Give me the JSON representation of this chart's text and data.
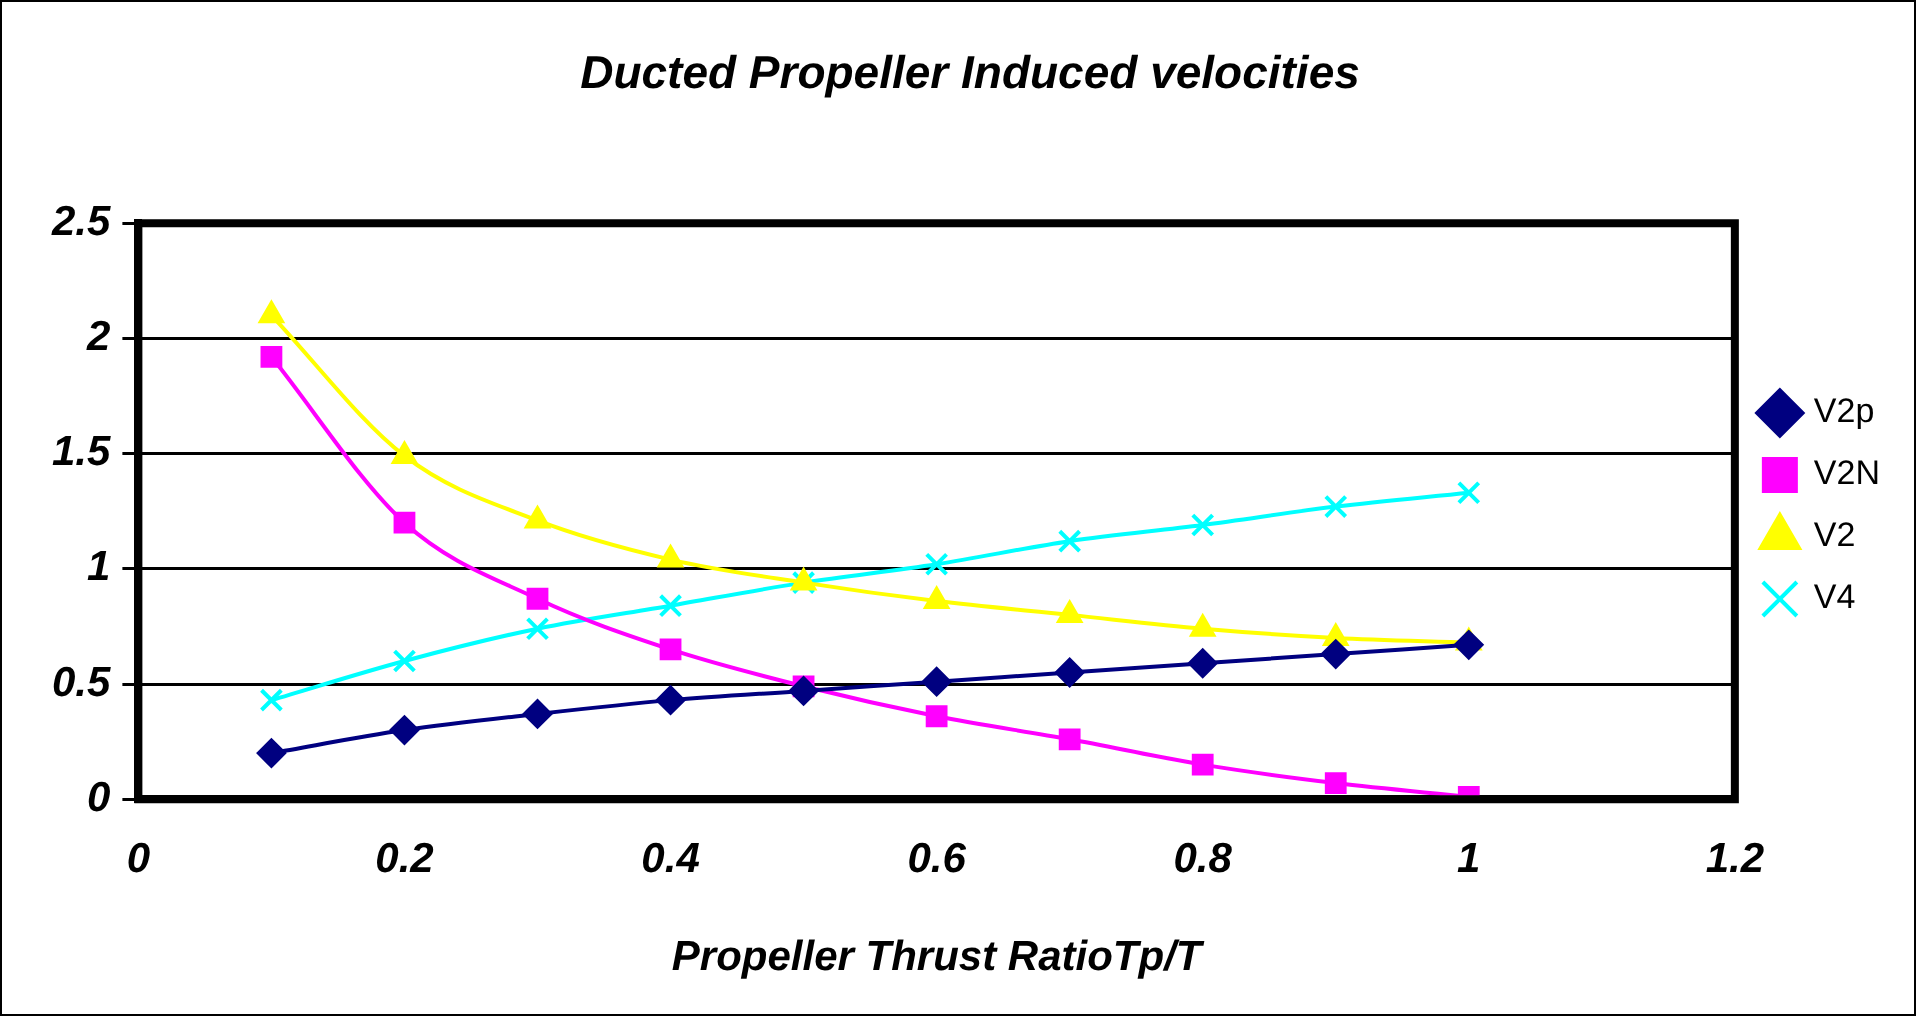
{
  "chart_data": {
    "type": "line",
    "title": "Ducted Propeller Induced velocities",
    "xlabel": "Propeller Thrust RatioTp/T",
    "x": [
      0.1,
      0.2,
      0.3,
      0.4,
      0.5,
      0.6,
      0.7,
      0.8,
      0.9,
      1
    ],
    "series": [
      {
        "name": "V2p",
        "color": "#000080",
        "marker": "diamond",
        "values": [
          0.2,
          0.3,
          0.37,
          0.43,
          0.47,
          0.51,
          0.55,
          0.59,
          0.63,
          0.67
        ]
      },
      {
        "name": "V2N",
        "color": "#ff00ff",
        "marker": "square",
        "values": [
          1.92,
          1.2,
          0.87,
          0.65,
          0.49,
          0.36,
          0.26,
          0.15,
          0.07,
          0.01
        ]
      },
      {
        "name": "V2",
        "color": "#ffff00",
        "marker": "triangle",
        "values": [
          2.1,
          1.49,
          1.21,
          1.04,
          0.94,
          0.86,
          0.8,
          0.74,
          0.7,
          0.68
        ]
      },
      {
        "name": "V4",
        "color": "#00ffff",
        "marker": "cross",
        "values": [
          0.43,
          0.6,
          0.74,
          0.84,
          0.94,
          1.02,
          1.12,
          1.19,
          1.27,
          1.33
        ]
      }
    ],
    "xlim": [
      0,
      1.2
    ],
    "xticks": [
      0,
      0.2,
      0.4,
      0.6,
      0.8,
      1,
      1.2
    ],
    "ylim": [
      0,
      2.5
    ],
    "yticks": [
      0,
      0.5,
      1,
      1.5,
      2,
      2.5
    ],
    "grid": "y",
    "legend": "right"
  }
}
